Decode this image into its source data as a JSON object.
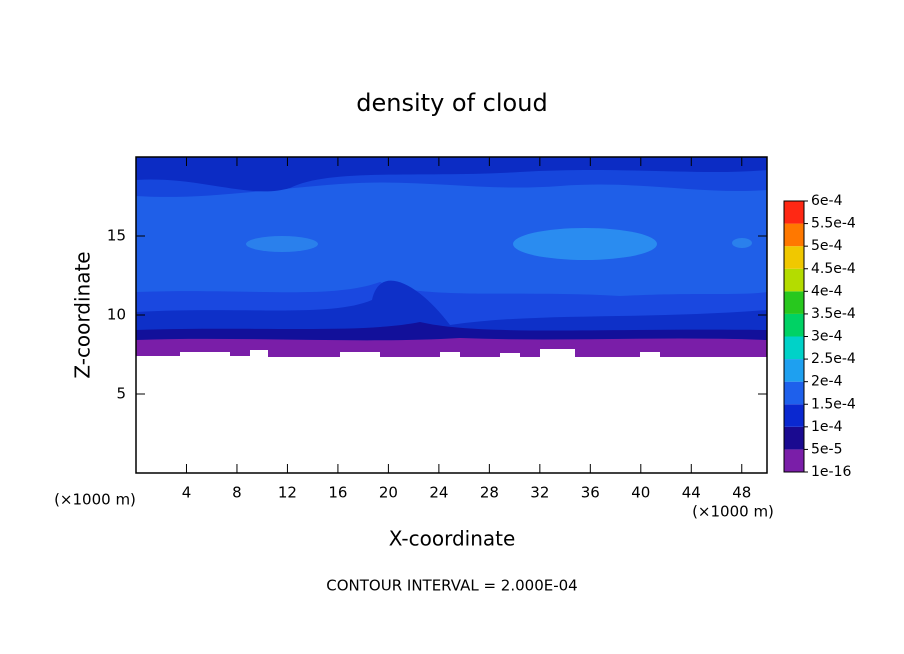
{
  "chart_data": {
    "type": "contour",
    "title": "density of cloud",
    "x_label": "X-coordinate",
    "y_label": "Z-coordinate",
    "x_unit_left": "(×1000 m)",
    "x_unit_right": "(×1000 m)",
    "footer": "CONTOUR INTERVAL = 2.000E-04",
    "xlim": [
      0,
      50
    ],
    "xticks": [
      4,
      8,
      12,
      16,
      20,
      24,
      28,
      32,
      36,
      40,
      44,
      48
    ],
    "ylim": [
      0,
      20
    ],
    "yticks": [
      5,
      10,
      15
    ],
    "colorbar": {
      "levels": [
        {
          "value": 1e-16,
          "label": "1e-16"
        },
        {
          "value": 5e-05,
          "label": "5e-5"
        },
        {
          "value": 0.0001,
          "label": "1e-4"
        },
        {
          "value": 0.00015,
          "label": "1.5e-4"
        },
        {
          "value": 0.0002,
          "label": "2e-4"
        },
        {
          "value": 0.00025,
          "label": "2.5e-4"
        },
        {
          "value": 0.0003,
          "label": "3e-4"
        },
        {
          "value": 0.00035,
          "label": "3.5e-4"
        },
        {
          "value": 0.0004,
          "label": "4e-4"
        },
        {
          "value": 0.00045,
          "label": "4.5e-4"
        },
        {
          "value": 0.0005,
          "label": "5e-4"
        },
        {
          "value": 0.00055,
          "label": "5.5e-4"
        },
        {
          "value": 0.0006,
          "label": "6e-4"
        }
      ],
      "colors": [
        "#7a1ea8",
        "#1a0a90",
        "#0a28d0",
        "#1e60ec",
        "#1ea0f0",
        "#00d2c8",
        "#00d264",
        "#28c81e",
        "#b4dc00",
        "#f0c800",
        "#ff7800",
        "#ff2814"
      ]
    }
  }
}
